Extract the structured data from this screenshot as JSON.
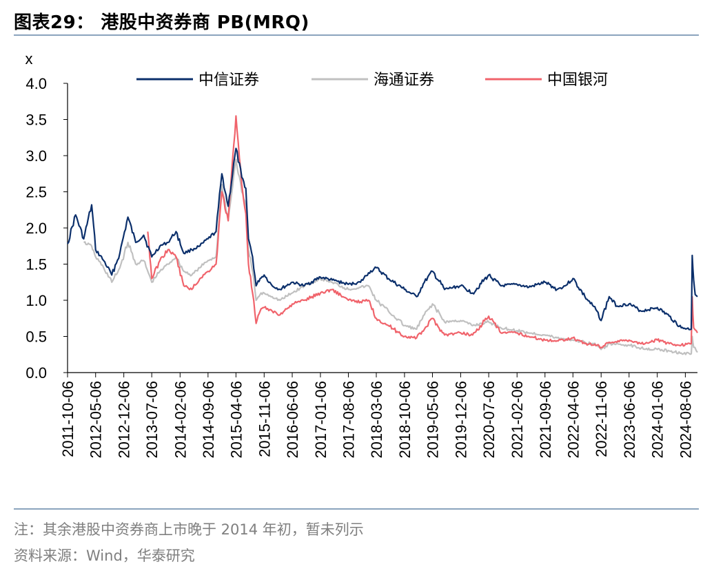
{
  "header": {
    "title": "图表29：  港股中资券商 PB(MRQ)"
  },
  "footer": {
    "note": "注：其余港股中资券商上市晚于 2014 年初，暂未列示",
    "source": "资料来源：Wind，华泰研究"
  },
  "colors": {
    "citic": "#0b2f6b",
    "haitong": "#c0c0c0",
    "cgs": "#f0636b",
    "rule": "#8aa3bd"
  },
  "chart_data": {
    "type": "line",
    "ylabel": "x",
    "ylim": [
      0,
      4.0
    ],
    "yticks": [
      "0.0",
      "0.5",
      "1.0",
      "1.5",
      "2.0",
      "2.5",
      "3.0",
      "3.5",
      "4.0"
    ],
    "xticks": [
      "2011-10-06",
      "2012-05-06",
      "2012-12-06",
      "2013-07-06",
      "2014-02-06",
      "2014-09-06",
      "2015-04-06",
      "2015-11-06",
      "2016-06-06",
      "2017-01-06",
      "2017-08-06",
      "2018-03-06",
      "2018-10-06",
      "2019-05-06",
      "2019-12-06",
      "2020-07-06",
      "2021-02-06",
      "2021-09-06",
      "2022-04-06",
      "2022-11-06",
      "2023-06-06",
      "2024-01-06",
      "2024-08-06"
    ],
    "legend_position": "top",
    "series": [
      {
        "name": "中信证券",
        "x": [
          "2011-10-06",
          "2011-12-06",
          "2012-02-06",
          "2012-04-06",
          "2012-05-06",
          "2012-07-06",
          "2012-09-06",
          "2012-11-06",
          "2013-01-06",
          "2013-03-06",
          "2013-05-06",
          "2013-07-06",
          "2013-09-06",
          "2013-11-06",
          "2014-01-06",
          "2014-03-06",
          "2014-05-06",
          "2014-07-06",
          "2014-09-06",
          "2014-11-06",
          "2014-12-20",
          "2015-02-06",
          "2015-04-06",
          "2015-05-20",
          "2015-06-20",
          "2015-07-10",
          "2015-08-10",
          "2015-09-06",
          "2015-10-06",
          "2015-11-06",
          "2016-01-06",
          "2016-03-06",
          "2016-06-06",
          "2016-09-06",
          "2017-01-06",
          "2017-04-06",
          "2017-08-06",
          "2017-11-06",
          "2018-01-06",
          "2018-03-06",
          "2018-06-06",
          "2018-10-06",
          "2019-01-06",
          "2019-03-06",
          "2019-05-06",
          "2019-08-06",
          "2019-12-06",
          "2020-03-06",
          "2020-07-06",
          "2020-10-06",
          "2021-02-06",
          "2021-05-06",
          "2021-09-06",
          "2021-12-06",
          "2022-02-06",
          "2022-04-06",
          "2022-07-06",
          "2022-10-06",
          "2022-11-06",
          "2023-01-06",
          "2023-03-06",
          "2023-06-06",
          "2023-09-06",
          "2024-01-06",
          "2024-04-06",
          "2024-07-06",
          "2024-09-20",
          "2024-09-27",
          "2024-10-08",
          "2024-10-20",
          "2024-11-06"
        ],
        "y": [
          1.78,
          2.18,
          1.85,
          2.32,
          1.7,
          1.55,
          1.35,
          1.65,
          2.15,
          1.8,
          1.9,
          1.6,
          1.75,
          1.8,
          1.95,
          1.65,
          1.7,
          1.75,
          1.85,
          1.95,
          2.75,
          2.3,
          3.1,
          2.7,
          2.55,
          1.85,
          1.6,
          1.2,
          1.3,
          1.35,
          1.2,
          1.15,
          1.25,
          1.2,
          1.32,
          1.28,
          1.22,
          1.25,
          1.38,
          1.45,
          1.3,
          1.15,
          1.05,
          1.25,
          1.4,
          1.15,
          1.2,
          1.1,
          1.35,
          1.2,
          1.22,
          1.18,
          1.25,
          1.15,
          1.2,
          1.3,
          1.05,
          0.85,
          0.72,
          1.05,
          0.92,
          0.95,
          0.85,
          0.9,
          0.78,
          0.62,
          0.6,
          1.62,
          1.28,
          1.08,
          1.05
        ]
      },
      {
        "name": "海通证券",
        "x": [
          "2012-02-06",
          "2012-04-06",
          "2012-05-06",
          "2012-07-06",
          "2012-09-06",
          "2012-11-06",
          "2013-01-06",
          "2013-03-06",
          "2013-05-06",
          "2013-07-06",
          "2013-09-06",
          "2013-11-06",
          "2014-01-06",
          "2014-03-06",
          "2014-05-06",
          "2014-07-06",
          "2014-09-06",
          "2014-11-06",
          "2014-12-20",
          "2015-02-06",
          "2015-04-06",
          "2015-05-20",
          "2015-06-20",
          "2015-07-10",
          "2015-08-10",
          "2015-09-06",
          "2015-10-06",
          "2015-11-06",
          "2016-01-06",
          "2016-03-06",
          "2016-06-06",
          "2016-09-06",
          "2017-01-06",
          "2017-04-06",
          "2017-08-06",
          "2017-11-06",
          "2018-01-06",
          "2018-03-06",
          "2018-06-06",
          "2018-10-06",
          "2019-01-06",
          "2019-03-06",
          "2019-05-06",
          "2019-08-06",
          "2019-12-06",
          "2020-03-06",
          "2020-07-06",
          "2020-10-06",
          "2021-02-06",
          "2021-05-06",
          "2021-09-06",
          "2021-12-06",
          "2022-04-06",
          "2022-07-06",
          "2022-10-06",
          "2022-11-06",
          "2023-01-06",
          "2023-06-06",
          "2023-09-06",
          "2024-01-06",
          "2024-04-06",
          "2024-07-06",
          "2024-09-20",
          "2024-09-27",
          "2024-10-08",
          "2024-11-06"
        ],
        "y": [
          1.8,
          1.75,
          1.6,
          1.45,
          1.25,
          1.45,
          1.8,
          1.5,
          1.55,
          1.25,
          1.4,
          1.5,
          1.6,
          1.4,
          1.35,
          1.45,
          1.55,
          1.6,
          2.6,
          2.1,
          2.95,
          2.5,
          2.3,
          1.7,
          1.4,
          1.0,
          1.08,
          1.1,
          1.05,
          1.0,
          1.1,
          1.2,
          1.3,
          1.25,
          1.15,
          1.18,
          1.2,
          1.0,
          0.85,
          0.65,
          0.6,
          0.8,
          0.95,
          0.7,
          0.72,
          0.65,
          0.7,
          0.62,
          0.58,
          0.55,
          0.52,
          0.48,
          0.45,
          0.42,
          0.38,
          0.32,
          0.4,
          0.38,
          0.34,
          0.32,
          0.3,
          0.27,
          0.26,
          0.5,
          0.35,
          0.28
        ]
      },
      {
        "name": "中国银河",
        "x": [
          "2013-06-06",
          "2013-07-06",
          "2013-09-06",
          "2013-11-06",
          "2014-01-06",
          "2014-03-06",
          "2014-05-06",
          "2014-07-06",
          "2014-09-06",
          "2014-11-06",
          "2014-12-20",
          "2015-02-06",
          "2015-04-06",
          "2015-05-20",
          "2015-06-20",
          "2015-07-10",
          "2015-08-10",
          "2015-09-06",
          "2015-10-06",
          "2015-11-06",
          "2016-01-06",
          "2016-03-06",
          "2016-06-06",
          "2016-09-06",
          "2017-01-06",
          "2017-04-06",
          "2017-08-06",
          "2017-11-06",
          "2018-01-06",
          "2018-03-06",
          "2018-06-06",
          "2018-10-06",
          "2019-01-06",
          "2019-03-06",
          "2019-05-06",
          "2019-08-06",
          "2019-12-06",
          "2020-03-06",
          "2020-07-06",
          "2020-10-06",
          "2021-02-06",
          "2021-05-06",
          "2021-09-06",
          "2021-12-06",
          "2022-04-06",
          "2022-07-06",
          "2022-10-06",
          "2022-11-06",
          "2023-01-06",
          "2023-06-06",
          "2023-09-06",
          "2024-01-06",
          "2024-04-06",
          "2024-07-06",
          "2024-09-20",
          "2024-09-27",
          "2024-10-08",
          "2024-11-06"
        ],
        "y": [
          1.95,
          1.3,
          1.55,
          1.7,
          1.6,
          1.2,
          1.15,
          1.3,
          1.4,
          1.5,
          2.5,
          2.1,
          3.55,
          2.6,
          2.2,
          1.5,
          1.1,
          0.68,
          0.85,
          0.9,
          0.85,
          0.8,
          0.95,
          1.0,
          1.1,
          1.15,
          1.0,
          0.98,
          1.0,
          0.75,
          0.65,
          0.5,
          0.48,
          0.6,
          0.75,
          0.52,
          0.55,
          0.52,
          0.78,
          0.55,
          0.55,
          0.5,
          0.45,
          0.44,
          0.48,
          0.4,
          0.38,
          0.35,
          0.42,
          0.45,
          0.4,
          0.45,
          0.4,
          0.38,
          0.4,
          1.05,
          0.62,
          0.55
        ]
      }
    ]
  }
}
